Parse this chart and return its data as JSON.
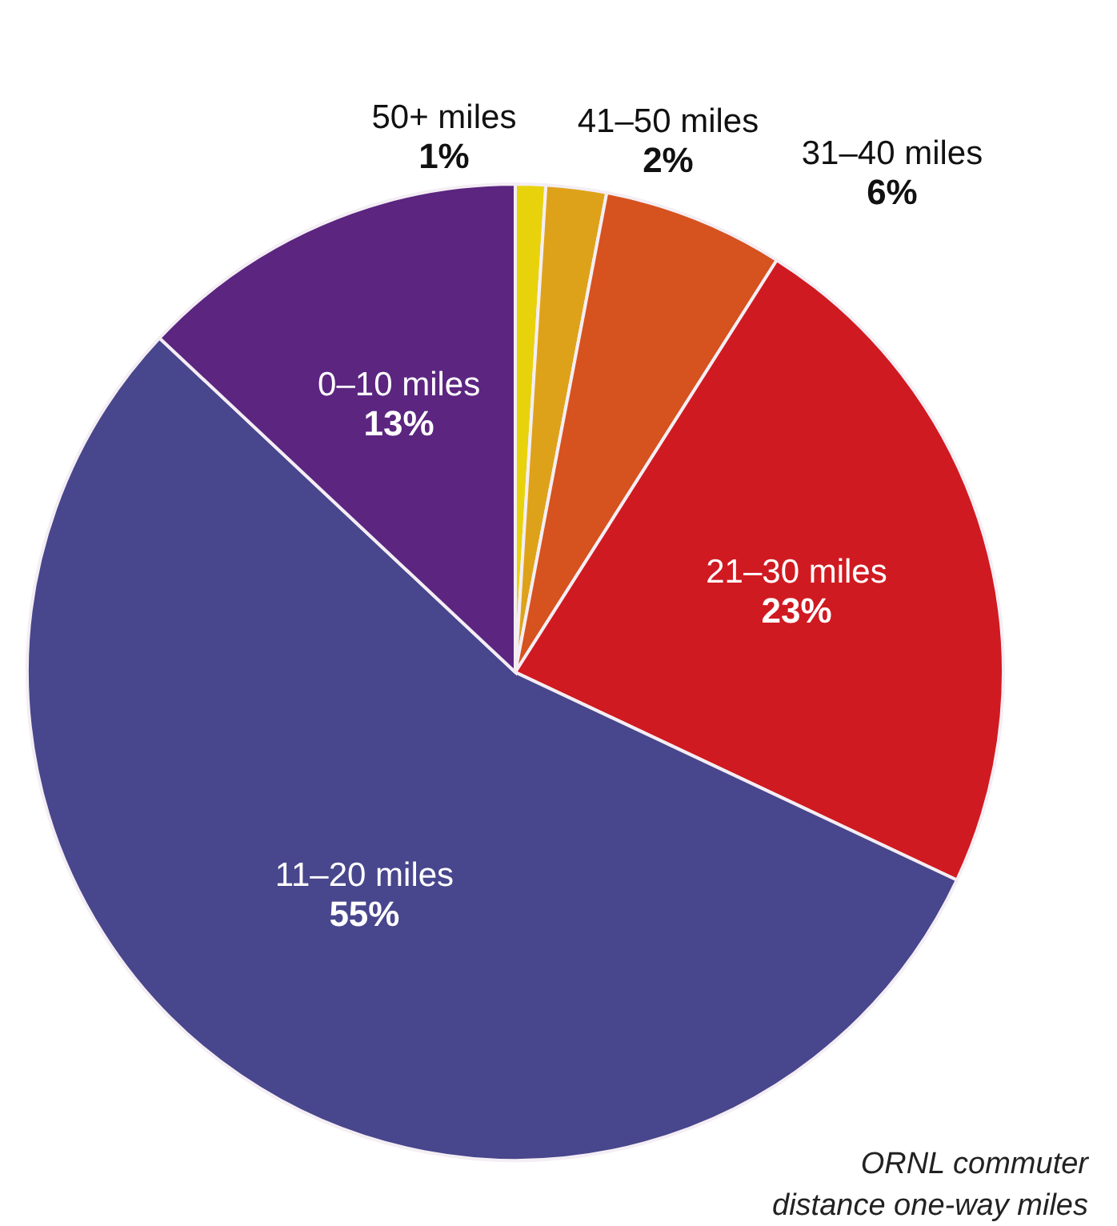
{
  "chart_data": {
    "type": "pie",
    "categories": [
      "50+ miles",
      "41–50 miles",
      "31–40 miles",
      "21–30 miles",
      "11–20 miles",
      "0–10 miles"
    ],
    "values": [
      1,
      2,
      6,
      23,
      55,
      13
    ],
    "colors": [
      "#e8d20c",
      "#dea21a",
      "#d6521f",
      "#d01a21",
      "#48468c",
      "#5b2580"
    ],
    "value_labels": [
      "1%",
      "2%",
      "6%",
      "23%",
      "55%",
      "13%"
    ],
    "annotations": [
      "ORNL commuter",
      "distance one-way miles"
    ]
  }
}
